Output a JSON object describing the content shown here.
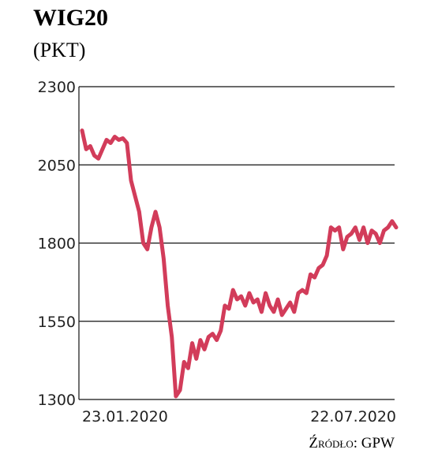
{
  "chart_data": {
    "type": "line",
    "title": "WIG20",
    "subtitle": "(PKT)",
    "source": "Źródło: GPW",
    "categories": [
      "23.01.2020",
      null,
      null,
      null,
      null,
      null,
      null,
      null,
      null,
      null,
      null,
      null,
      null,
      null,
      null,
      null,
      null,
      null,
      null,
      null,
      null,
      null,
      null,
      null,
      null,
      null,
      null,
      null,
      null,
      null,
      null,
      null,
      null,
      null,
      null,
      null,
      null,
      null,
      null,
      null,
      null,
      null,
      null,
      null,
      null,
      null,
      null,
      null,
      null,
      null,
      null,
      null,
      null,
      null,
      null,
      null,
      null,
      null,
      null,
      null,
      null,
      null,
      null,
      null,
      null,
      null,
      null,
      null,
      null,
      null,
      null,
      null,
      null,
      null,
      null,
      null,
      null,
      "22.07.2020"
    ],
    "series": [
      {
        "name": "WIG20",
        "color": "#d23c5a",
        "values": [
          2160,
          2100,
          2110,
          2080,
          2070,
          2100,
          2130,
          2120,
          2140,
          2130,
          2135,
          2120,
          2000,
          1950,
          1900,
          1800,
          1780,
          1850,
          1900,
          1850,
          1750,
          1600,
          1500,
          1310,
          1330,
          1420,
          1400,
          1480,
          1430,
          1490,
          1460,
          1500,
          1510,
          1490,
          1520,
          1600,
          1590,
          1650,
          1620,
          1630,
          1600,
          1640,
          1610,
          1620,
          1580,
          1640,
          1600,
          1580,
          1620,
          1570,
          1590,
          1610,
          1580,
          1640,
          1650,
          1640,
          1700,
          1690,
          1720,
          1730,
          1760,
          1850,
          1840,
          1850,
          1780,
          1820,
          1830,
          1850,
          1810,
          1850,
          1800,
          1840,
          1830,
          1800,
          1840,
          1850,
          1870,
          1850
        ]
      }
    ],
    "ylim": [
      1300,
      2300
    ],
    "yticks": [
      1300,
      1550,
      1800,
      2050,
      2300
    ],
    "grid": true
  }
}
